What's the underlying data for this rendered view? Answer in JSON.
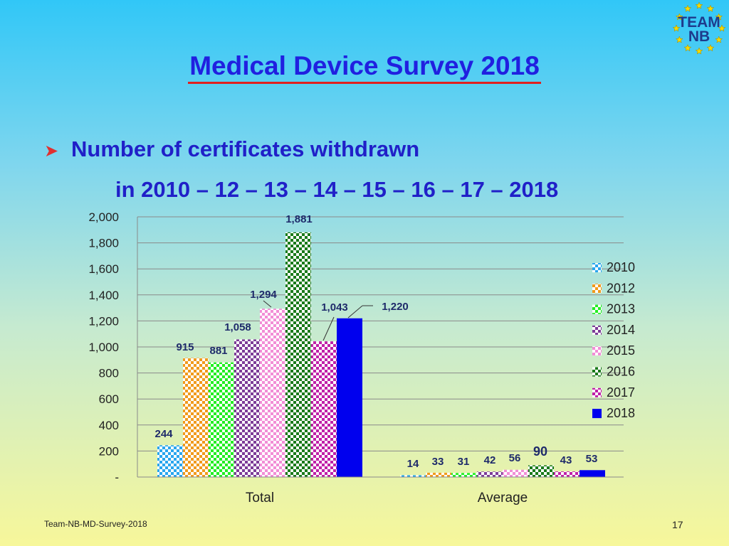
{
  "slide": {
    "title": "Medical Device Survey 2018",
    "bullet_line_1": "Number of certificates withdrawn",
    "bullet_line_2": "in 2010 – 12 – 13 – 14 – 15 – 16 – 17 – 2018",
    "footer_left": "Team-NB-MD-Survey-2018",
    "page_number": "17",
    "logo_text_top": "TEAM",
    "logo_text_bottom": "NB"
  },
  "chart_data": {
    "type": "bar",
    "categories": [
      "Total",
      "Average"
    ],
    "series": [
      {
        "name": "2010",
        "values": [
          244,
          14
        ],
        "labels": [
          "244",
          "14"
        ],
        "color": "#2aa6ee",
        "pattern": "check"
      },
      {
        "name": "2012",
        "values": [
          915,
          33
        ],
        "labels": [
          "915",
          "33"
        ],
        "color": "#f19a1c",
        "pattern": "check"
      },
      {
        "name": "2013",
        "values": [
          881,
          31
        ],
        "labels": [
          "881",
          "31"
        ],
        "color": "#22ee22",
        "pattern": "check"
      },
      {
        "name": "2014",
        "values": [
          1058,
          42
        ],
        "labels": [
          "1,058",
          "42"
        ],
        "color": "#7d3c98",
        "pattern": "check"
      },
      {
        "name": "2015",
        "values": [
          1294,
          56
        ],
        "labels": [
          "1,294",
          "56"
        ],
        "color": "#f28dd6",
        "pattern": "check"
      },
      {
        "name": "2016",
        "values": [
          1881,
          90
        ],
        "labels": [
          "1,881",
          "90"
        ],
        "color": "#1a7a1a",
        "pattern": "check"
      },
      {
        "name": "2017",
        "values": [
          1043,
          43
        ],
        "labels": [
          "1,043",
          "43"
        ],
        "color": "#c020a8",
        "pattern": "check"
      },
      {
        "name": "2018",
        "values": [
          1220,
          53
        ],
        "labels": [
          "1,220",
          "53"
        ],
        "color": "#0000ee",
        "pattern": "solid"
      }
    ],
    "ylim": [
      0,
      2000
    ],
    "yticks": [
      0,
      200,
      400,
      600,
      800,
      1000,
      1200,
      1400,
      1600,
      1800,
      2000
    ],
    "ytick_labels": [
      "-",
      "200",
      "400",
      "600",
      "800",
      "1,000",
      "1,200",
      "1,400",
      "1,600",
      "1,800",
      "2,000"
    ],
    "grid": true,
    "legend": "right",
    "xlabel": "",
    "ylabel": ""
  }
}
